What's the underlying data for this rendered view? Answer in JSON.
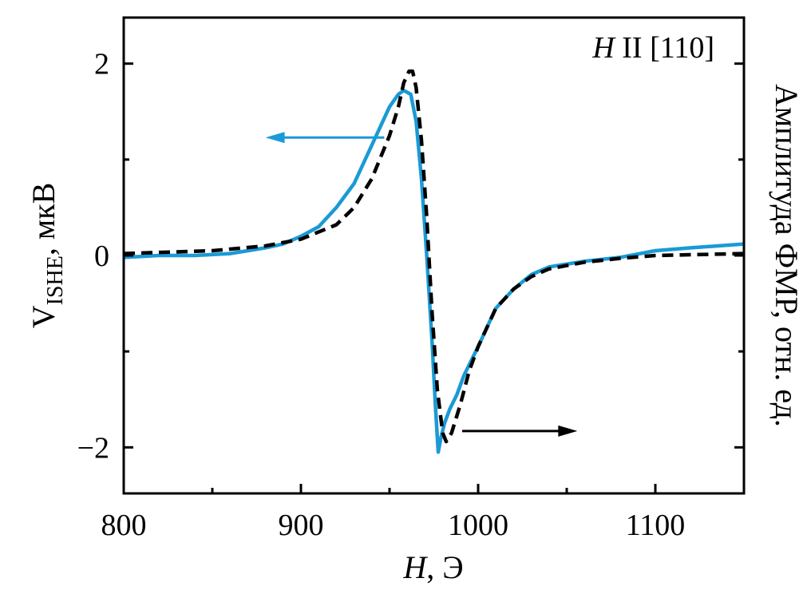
{
  "chart_data": {
    "type": "line",
    "title": "",
    "annotation": {
      "italic": "H",
      "rest": " II [110]"
    },
    "xlabel": {
      "italic": "H",
      "rest": ", Э"
    },
    "ylabel": {
      "main": "V",
      "sub": "ISHE",
      "rest": ", мкВ"
    },
    "ylabel_right": "Амплитуда ФМР, отн. ед.",
    "xlim": [
      800,
      1150
    ],
    "ylim": [
      -2.48,
      2.48
    ],
    "xticks": [
      800,
      900,
      1000,
      1100
    ],
    "xtick_labels": [
      "800",
      "900",
      "1000",
      "1100"
    ],
    "yticks": [
      2,
      0,
      -2
    ],
    "ytick_labels": [
      "2",
      "0",
      "−2"
    ],
    "grid": false,
    "series": [
      {
        "name": "V_ISHE",
        "axis": "left",
        "color": "#1a9ad6",
        "style": "solid",
        "x": [
          800,
          820,
          840,
          860,
          880,
          890,
          900,
          910,
          920,
          930,
          935,
          940,
          945,
          950,
          955,
          958,
          962,
          965,
          968,
          971,
          974,
          976,
          977.5,
          979,
          981,
          984,
          988,
          992,
          996,
          1000,
          1005,
          1010,
          1015,
          1020,
          1030,
          1040,
          1060,
          1080,
          1100,
          1120,
          1150
        ],
        "y": [
          -0.02,
          0.0,
          0.0,
          0.02,
          0.08,
          0.12,
          0.2,
          0.3,
          0.5,
          0.75,
          0.95,
          1.15,
          1.35,
          1.55,
          1.68,
          1.72,
          1.68,
          1.4,
          0.8,
          0.0,
          -0.9,
          -1.6,
          -2.05,
          -1.9,
          -1.75,
          -1.6,
          -1.45,
          -1.25,
          -1.1,
          -0.95,
          -0.75,
          -0.55,
          -0.45,
          -0.35,
          -0.2,
          -0.12,
          -0.06,
          -0.02,
          0.05,
          0.08,
          0.12
        ]
      },
      {
        "name": "FMR",
        "axis": "right",
        "color": "#000000",
        "style": "dashed",
        "x": [
          800,
          850,
          880,
          900,
          920,
          930,
          940,
          950,
          955,
          958,
          961,
          963,
          965,
          968,
          971,
          974,
          977,
          980,
          982,
          985,
          990,
          995,
          1000,
          1005,
          1010,
          1020,
          1030,
          1040,
          1060,
          1080,
          1100,
          1150
        ],
        "y": [
          0.02,
          0.05,
          0.1,
          0.17,
          0.32,
          0.5,
          0.8,
          1.25,
          1.55,
          1.8,
          1.92,
          1.92,
          1.75,
          1.2,
          0.4,
          -0.6,
          -1.4,
          -1.85,
          -1.94,
          -1.85,
          -1.55,
          -1.2,
          -0.95,
          -0.75,
          -0.55,
          -0.35,
          -0.22,
          -0.14,
          -0.07,
          -0.03,
          0.0,
          0.02
        ]
      }
    ],
    "arrows": [
      {
        "series": "V_ISHE",
        "direction": "left",
        "from": [
          947,
          1.23
        ],
        "to": [
          880,
          1.23
        ],
        "color": "#1a9ad6"
      },
      {
        "series": "FMR",
        "direction": "right",
        "from": [
          991,
          -1.83
        ],
        "to": [
          1056,
          -1.83
        ],
        "color": "#000000"
      }
    ]
  }
}
